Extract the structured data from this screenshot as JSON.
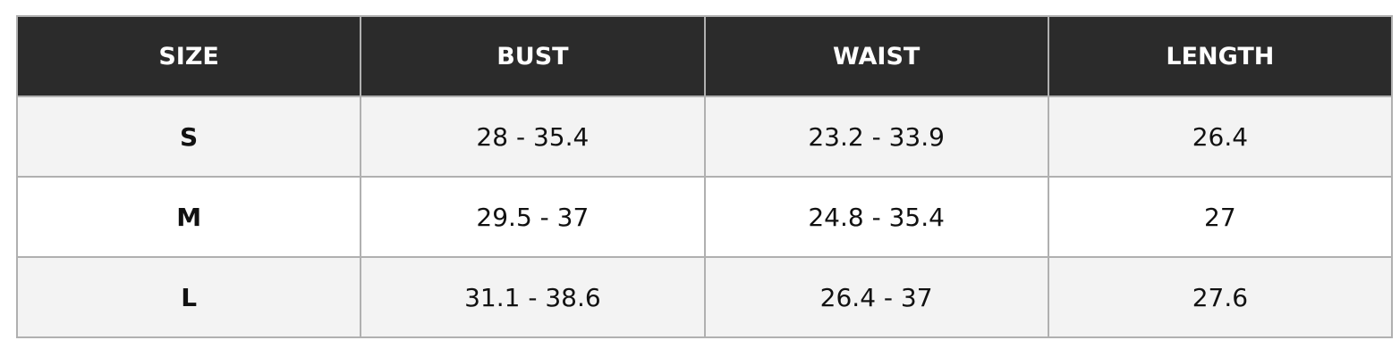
{
  "table": {
    "headers": [
      "SIZE",
      "BUST",
      "WAIST",
      "LENGTH"
    ],
    "rows": [
      [
        "S",
        "28 - 35.4",
        "23.2 - 33.9",
        "26.4"
      ],
      [
        "M",
        "29.5 - 37",
        "24.8 - 35.4",
        "27"
      ],
      [
        "L",
        "31.1 - 38.6",
        "26.4 - 37",
        "27.6"
      ]
    ]
  }
}
